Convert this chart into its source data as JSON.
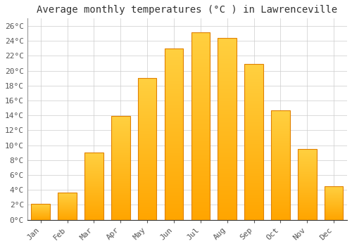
{
  "title": "Average monthly temperatures (°C ) in Lawrenceville",
  "months": [
    "Jan",
    "Feb",
    "Mar",
    "Apr",
    "May",
    "Jun",
    "Jul",
    "Aug",
    "Sep",
    "Oct",
    "Nov",
    "Dec"
  ],
  "values": [
    2.1,
    3.6,
    9.0,
    13.9,
    19.0,
    23.0,
    25.1,
    24.4,
    20.9,
    14.7,
    9.5,
    4.5
  ],
  "bar_color_main": "#FFA500",
  "bar_color_light": "#FFD040",
  "bar_edge_color": "#E08000",
  "ylim": [
    0,
    27
  ],
  "yticks": [
    0,
    2,
    4,
    6,
    8,
    10,
    12,
    14,
    16,
    18,
    20,
    22,
    24,
    26
  ],
  "ytick_labels": [
    "0°C",
    "2°C",
    "4°C",
    "6°C",
    "8°C",
    "10°C",
    "12°C",
    "14°C",
    "16°C",
    "18°C",
    "20°C",
    "22°C",
    "24°C",
    "26°C"
  ],
  "background_color": "#FFFFFF",
  "grid_color": "#CCCCCC",
  "title_fontsize": 10,
  "tick_fontsize": 8,
  "bar_width": 0.7
}
